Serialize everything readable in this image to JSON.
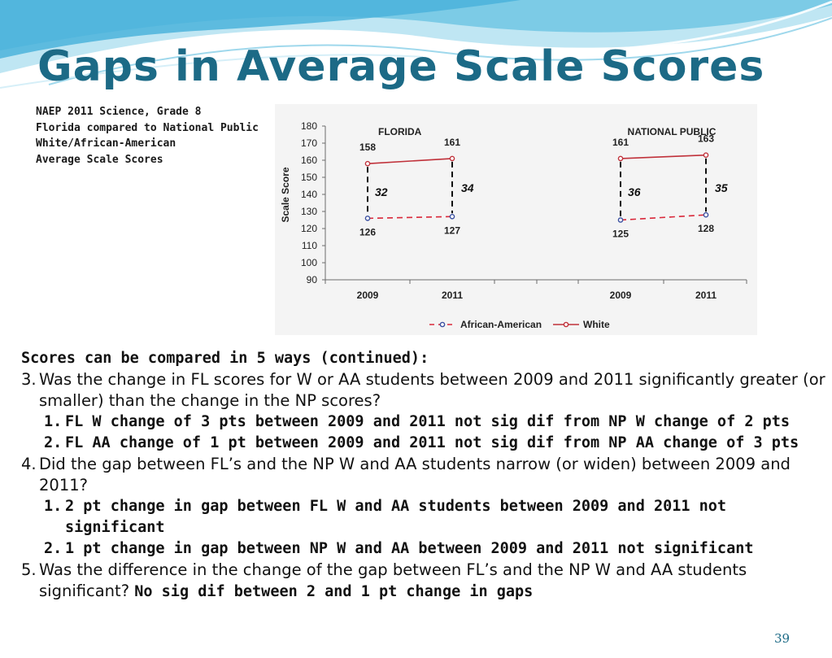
{
  "slide": {
    "title": "Gaps in Average Scale Scores",
    "caption_lines": [
      "NAEP 2011 Science, Grade 8",
      "Florida compared to National Public",
      "White/African-American",
      "Average Scale Scores"
    ],
    "page_number": "39",
    "colors": {
      "title": "#1c6a86",
      "white_series": "#c0313a",
      "aa_series": "#d9283a",
      "aa_marker": "#3a4fa0"
    }
  },
  "chart_data": {
    "type": "line",
    "ylabel": "Scale Score",
    "ylim": [
      90,
      180
    ],
    "yticks": [
      "90",
      "100",
      "110",
      "120",
      "130",
      "140",
      "150",
      "160",
      "170",
      "180"
    ],
    "panels": [
      {
        "label": "FLORIDA",
        "categories": [
          "2009",
          "2011"
        ],
        "series": [
          {
            "name": "African-American",
            "values": [
              126,
              127
            ],
            "value_labels": [
              "126",
              "127"
            ]
          },
          {
            "name": "White",
            "values": [
              158,
              161
            ],
            "value_labels": [
              "158",
              "161"
            ]
          }
        ],
        "gaps": [
          "32",
          "34"
        ]
      },
      {
        "label": "NATIONAL PUBLIC",
        "categories": [
          "2009",
          "2011"
        ],
        "series": [
          {
            "name": "African-American",
            "values": [
              125,
              128
            ],
            "value_labels": [
              "125",
              "128"
            ]
          },
          {
            "name": "White",
            "values": [
              161,
              163
            ],
            "value_labels": [
              "161",
              "163"
            ]
          }
        ],
        "gaps": [
          "36",
          "35"
        ]
      }
    ],
    "legend": {
      "placement": "bottom",
      "items": [
        "African-American",
        "White"
      ]
    },
    "grid": false
  },
  "body": {
    "heading": "Scores can be compared in 5 ways (continued):",
    "items": [
      {
        "num": "3.",
        "text": "Was the change in FL scores for W or AA students between 2009 and 2011 significantly greater (or smaller) than the change in the NP scores?",
        "answers": [
          {
            "num": "1.",
            "text": "FL W change of 3 pts between 2009 and 2011 not sig dif from NP W change of 2 pts"
          },
          {
            "num": "2.",
            "text": "FL AA change of 1 pt between 2009 and 2011 not sig dif from NP AA change of 3 pts"
          }
        ]
      },
      {
        "num": "4.",
        "text": "Did the gap between FL’s and the NP W and AA students narrow (or widen) between 2009 and 2011?",
        "answers": [
          {
            "num": "1.",
            "text": "2 pt change in gap between FL W and AA students between 2009 and 2011 not significant"
          },
          {
            "num": "2.",
            "text": "1 pt change in gap between NP W and AA between 2009 and 2011 not significant"
          }
        ]
      },
      {
        "num": "5.",
        "text": "Was the difference in the change of the gap between FL’s and the NP W and AA students significant?",
        "bold_tail": "No sig dif between 2 and 1 pt change in gaps"
      }
    ]
  }
}
